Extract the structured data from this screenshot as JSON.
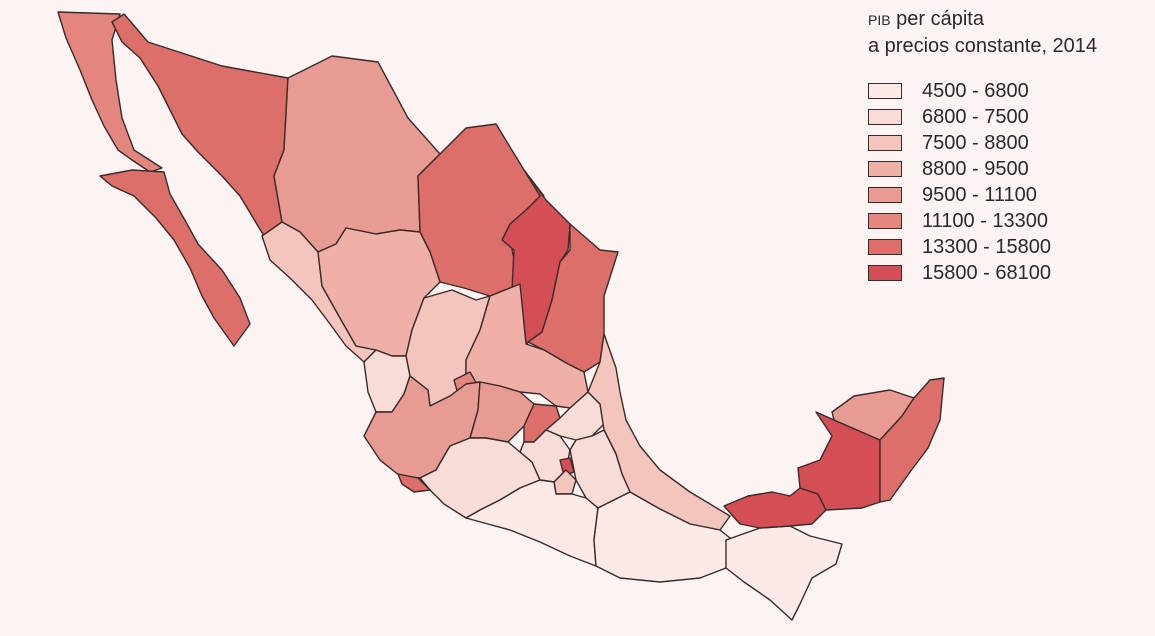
{
  "legend": {
    "title_prefix": "PIB",
    "title_line1_rest": " per cápita",
    "title_line2": "a precios constante, 2014",
    "classes": [
      {
        "label": "4500 - 6800",
        "color": "#fbeae7"
      },
      {
        "label": "6800 - 7500",
        "color": "#f8dcd6"
      },
      {
        "label": "7500 - 8800",
        "color": "#f3c5bd"
      },
      {
        "label": "8800 - 9500",
        "color": "#eeb0a7"
      },
      {
        "label": "9500 - 11100",
        "color": "#e89b92"
      },
      {
        "label": "11100 - 13300",
        "color": "#e2867e"
      },
      {
        "label": "13300 - 15800",
        "color": "#dc6f6a"
      },
      {
        "label": "15800 - 68100",
        "color": "#d44e55"
      }
    ]
  },
  "map": {
    "background": "#fcf4f2",
    "border_color": "#3a2a2a",
    "regions": [
      {
        "name": "baja-california",
        "class": 5
      },
      {
        "name": "baja-california-sur",
        "class": 6
      },
      {
        "name": "sonora",
        "class": 6
      },
      {
        "name": "chihuahua",
        "class": 4
      },
      {
        "name": "coahuila",
        "class": 6
      },
      {
        "name": "nuevo-leon",
        "class": 7
      },
      {
        "name": "tamaulipas",
        "class": 6
      },
      {
        "name": "sinaloa",
        "class": 2
      },
      {
        "name": "durango",
        "class": 3
      },
      {
        "name": "zacatecas",
        "class": 2
      },
      {
        "name": "san-luis-potosi",
        "class": 3
      },
      {
        "name": "nayarit",
        "class": 1
      },
      {
        "name": "aguascalientes",
        "class": 5
      },
      {
        "name": "jalisco",
        "class": 4
      },
      {
        "name": "colima",
        "class": 6
      },
      {
        "name": "guanajuato",
        "class": 4
      },
      {
        "name": "queretaro",
        "class": 6
      },
      {
        "name": "hidalgo",
        "class": 1
      },
      {
        "name": "veracruz",
        "class": 2
      },
      {
        "name": "michoacan",
        "class": 1
      },
      {
        "name": "estado-de-mexico",
        "class": 1
      },
      {
        "name": "ciudad-de-mexico",
        "class": 7
      },
      {
        "name": "morelos",
        "class": 2
      },
      {
        "name": "tlaxcala",
        "class": 0
      },
      {
        "name": "puebla",
        "class": 1
      },
      {
        "name": "guerrero",
        "class": 0
      },
      {
        "name": "oaxaca",
        "class": 0
      },
      {
        "name": "chiapas",
        "class": 0
      },
      {
        "name": "tabasco",
        "class": 7
      },
      {
        "name": "campeche",
        "class": 7
      },
      {
        "name": "yucatan",
        "class": 4
      },
      {
        "name": "quintana-roo",
        "class": 6
      }
    ]
  }
}
